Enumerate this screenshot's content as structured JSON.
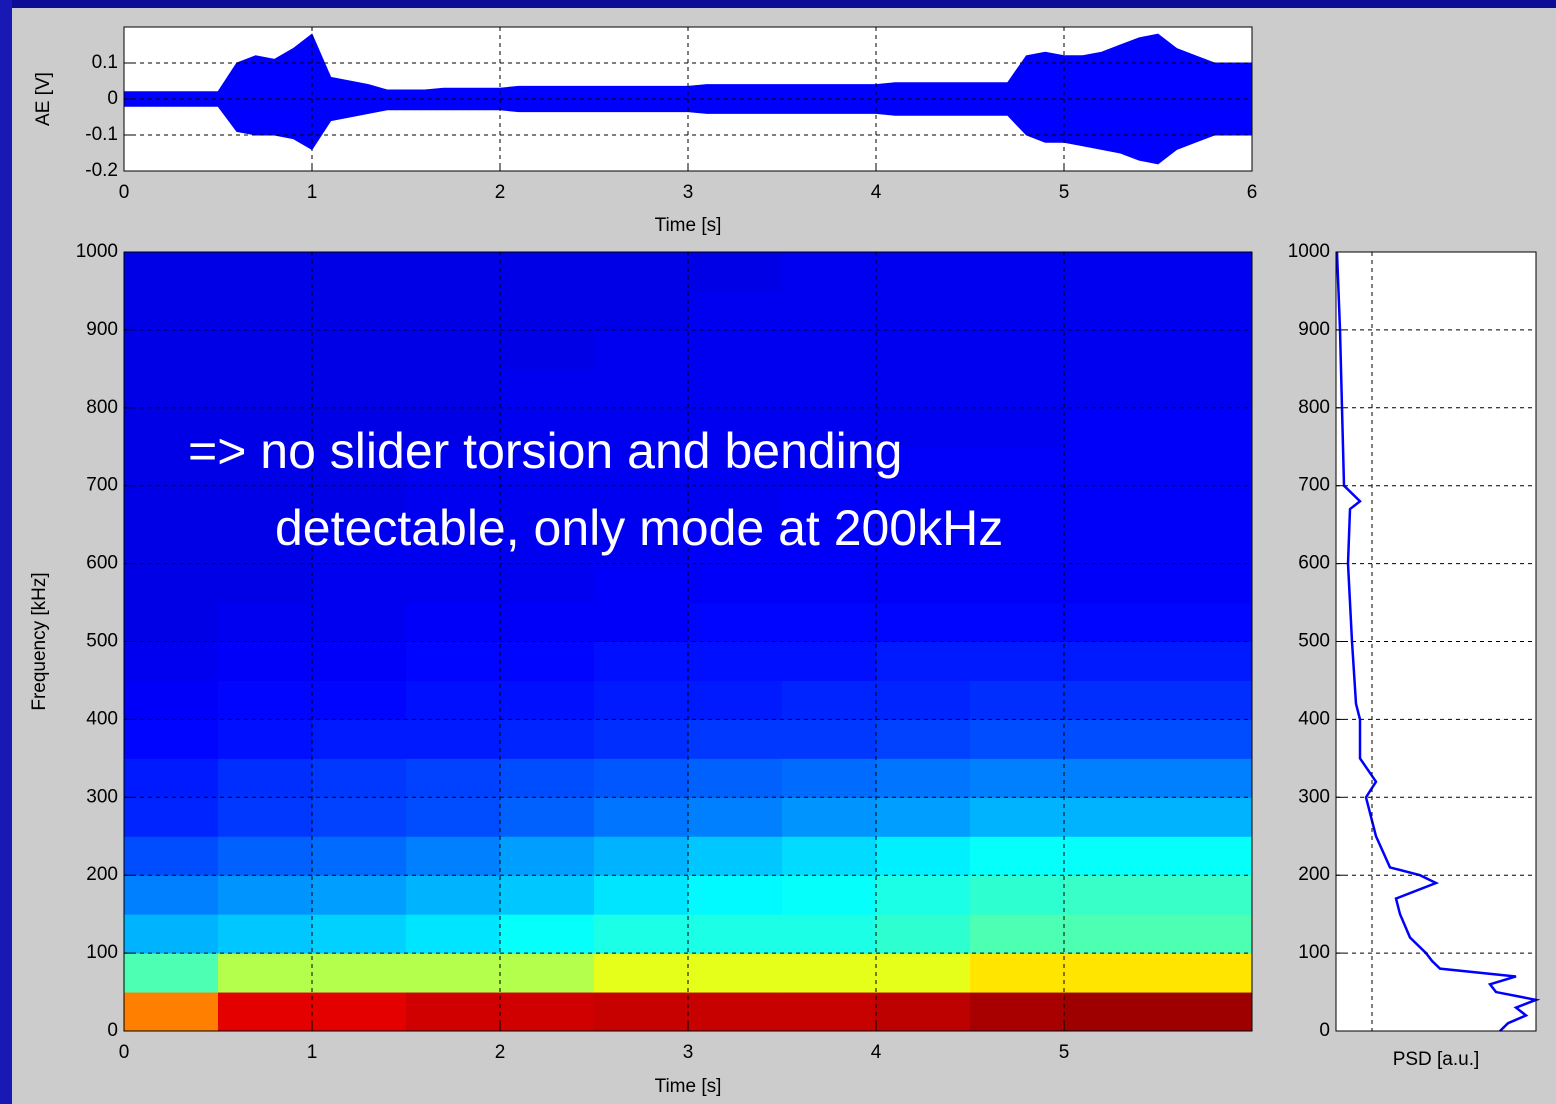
{
  "chart_data": [
    {
      "type": "band",
      "xlabel": "Time [s]",
      "ylabel": "AE [V]",
      "x": [
        0,
        0.1,
        0.2,
        0.3,
        0.4,
        0.5,
        0.6,
        0.7,
        0.8,
        0.9,
        1,
        1.1,
        1.2,
        1.3,
        1.4,
        1.5,
        1.6,
        1.7,
        1.8,
        1.9,
        2,
        2.1,
        2.2,
        2.3,
        2.4,
        2.5,
        2.6,
        2.7,
        2.8,
        2.9,
        3,
        3.1,
        3.2,
        3.3,
        3.4,
        3.5,
        3.6,
        3.7,
        3.8,
        3.9,
        4,
        4.1,
        4.2,
        4.3,
        4.4,
        4.5,
        4.6,
        4.7,
        4.8,
        4.9,
        5,
        5.1,
        5.2,
        5.3,
        5.4,
        5.5,
        5.6,
        5.7,
        5.8,
        5.9,
        6
      ],
      "series": [
        {
          "color": "#0000ff",
          "values": [
            0.02,
            0.02,
            0.02,
            0.02,
            0.02,
            0.02,
            0.1,
            0.12,
            0.11,
            0.14,
            0.18,
            0.06,
            0.05,
            0.04,
            0.025,
            0.025,
            0.025,
            0.03,
            0.03,
            0.03,
            0.03,
            0.035,
            0.035,
            0.035,
            0.035,
            0.035,
            0.035,
            0.035,
            0.035,
            0.035,
            0.035,
            0.04,
            0.04,
            0.04,
            0.04,
            0.04,
            0.04,
            0.04,
            0.04,
            0.04,
            0.04,
            0.045,
            0.045,
            0.045,
            0.045,
            0.045,
            0.045,
            0.045,
            0.12,
            0.13,
            0.12,
            0.12,
            0.13,
            0.15,
            0.17,
            0.18,
            0.14,
            0.12,
            0.1,
            0.1,
            0.1
          ]
        },
        {
          "color": "#0000ff",
          "values": [
            -0.02,
            -0.02,
            -0.02,
            -0.02,
            -0.02,
            -0.02,
            -0.09,
            -0.1,
            -0.1,
            -0.11,
            -0.14,
            -0.06,
            -0.05,
            -0.04,
            -0.03,
            -0.03,
            -0.03,
            -0.03,
            -0.03,
            -0.03,
            -0.03,
            -0.035,
            -0.035,
            -0.035,
            -0.035,
            -0.035,
            -0.035,
            -0.035,
            -0.035,
            -0.035,
            -0.035,
            -0.04,
            -0.04,
            -0.04,
            -0.04,
            -0.04,
            -0.04,
            -0.04,
            -0.04,
            -0.04,
            -0.04,
            -0.045,
            -0.045,
            -0.045,
            -0.045,
            -0.045,
            -0.045,
            -0.045,
            -0.1,
            -0.12,
            -0.12,
            -0.13,
            -0.14,
            -0.15,
            -0.17,
            -0.18,
            -0.14,
            -0.12,
            -0.1,
            -0.1,
            -0.1
          ]
        }
      ],
      "xlim": [
        0,
        6
      ],
      "ylim": [
        -0.2,
        0.2
      ],
      "xticks": [
        0,
        1,
        2,
        3,
        4,
        5,
        6
      ],
      "yticks": [
        -0.2,
        -0.1,
        0,
        0.1
      ],
      "grid": true
    },
    {
      "type": "heatmap",
      "xlabel": "Time [s]",
      "ylabel": "Frequency [kHz]",
      "annotation": [
        "=> no slider torsion and bending",
        "detectable, only mode at 200kHz"
      ],
      "xbins": [
        0,
        0.5,
        1,
        1.5,
        2,
        2.5,
        3,
        3.5,
        4,
        4.5,
        5,
        5.5,
        6
      ],
      "ybins": [
        0,
        50,
        100,
        150,
        200,
        250,
        300,
        350,
        400,
        450,
        500,
        550,
        600,
        650,
        700,
        750,
        800,
        850,
        900,
        950,
        1000
      ],
      "colormap": "jet",
      "clim": [
        0,
        1
      ],
      "z": [
        [
          0.75,
          0.9,
          0.9,
          0.92,
          0.92,
          0.93,
          0.93,
          0.93,
          0.94,
          0.96,
          0.97,
          0.97
        ],
        [
          0.45,
          0.55,
          0.55,
          0.55,
          0.55,
          0.6,
          0.6,
          0.6,
          0.6,
          0.65,
          0.65,
          0.65
        ],
        [
          0.3,
          0.32,
          0.33,
          0.35,
          0.38,
          0.4,
          0.4,
          0.4,
          0.42,
          0.45,
          0.45,
          0.45
        ],
        [
          0.25,
          0.27,
          0.28,
          0.3,
          0.32,
          0.35,
          0.37,
          0.38,
          0.4,
          0.42,
          0.43,
          0.43
        ],
        [
          0.2,
          0.22,
          0.23,
          0.25,
          0.28,
          0.3,
          0.32,
          0.34,
          0.36,
          0.38,
          0.38,
          0.38
        ],
        [
          0.16,
          0.18,
          0.19,
          0.2,
          0.22,
          0.24,
          0.25,
          0.27,
          0.28,
          0.3,
          0.3,
          0.3
        ],
        [
          0.15,
          0.17,
          0.18,
          0.19,
          0.2,
          0.21,
          0.22,
          0.23,
          0.24,
          0.25,
          0.25,
          0.25
        ],
        [
          0.13,
          0.14,
          0.15,
          0.15,
          0.16,
          0.17,
          0.18,
          0.18,
          0.19,
          0.2,
          0.2,
          0.2
        ],
        [
          0.12,
          0.13,
          0.13,
          0.14,
          0.14,
          0.15,
          0.15,
          0.16,
          0.16,
          0.17,
          0.17,
          0.17
        ],
        [
          0.11,
          0.12,
          0.12,
          0.13,
          0.13,
          0.14,
          0.14,
          0.14,
          0.15,
          0.15,
          0.15,
          0.15
        ],
        [
          0.1,
          0.11,
          0.11,
          0.12,
          0.12,
          0.12,
          0.13,
          0.13,
          0.13,
          0.13,
          0.13,
          0.13
        ],
        [
          0.1,
          0.1,
          0.11,
          0.11,
          0.11,
          0.12,
          0.12,
          0.12,
          0.12,
          0.12,
          0.12,
          0.12
        ],
        [
          0.1,
          0.1,
          0.11,
          0.11,
          0.11,
          0.11,
          0.12,
          0.12,
          0.12,
          0.12,
          0.12,
          0.12
        ],
        [
          0.1,
          0.1,
          0.1,
          0.11,
          0.11,
          0.11,
          0.11,
          0.12,
          0.12,
          0.12,
          0.12,
          0.12
        ],
        [
          0.1,
          0.1,
          0.1,
          0.11,
          0.11,
          0.11,
          0.11,
          0.11,
          0.12,
          0.12,
          0.12,
          0.12
        ],
        [
          0.1,
          0.1,
          0.1,
          0.1,
          0.11,
          0.11,
          0.11,
          0.11,
          0.11,
          0.11,
          0.12,
          0.12
        ],
        [
          0.1,
          0.1,
          0.1,
          0.1,
          0.11,
          0.11,
          0.11,
          0.11,
          0.11,
          0.11,
          0.11,
          0.11
        ],
        [
          0.1,
          0.1,
          0.1,
          0.1,
          0.1,
          0.11,
          0.11,
          0.11,
          0.11,
          0.11,
          0.11,
          0.11
        ],
        [
          0.1,
          0.1,
          0.1,
          0.1,
          0.1,
          0.1,
          0.11,
          0.11,
          0.11,
          0.11,
          0.11,
          0.11
        ],
        [
          0.1,
          0.1,
          0.1,
          0.1,
          0.1,
          0.1,
          0.1,
          0.11,
          0.11,
          0.11,
          0.11,
          0.11
        ]
      ],
      "xlim": [
        0,
        6
      ],
      "ylim": [
        0,
        1000
      ],
      "xticks": [
        0,
        1,
        2,
        3,
        4,
        5
      ],
      "yticks": [
        0,
        100,
        200,
        300,
        400,
        500,
        600,
        700,
        800,
        900,
        1000
      ],
      "grid": true
    },
    {
      "type": "profile",
      "xlabel": "PSD [a.u.]",
      "color": "#0000ff",
      "y": [
        0,
        10,
        20,
        30,
        40,
        50,
        60,
        70,
        80,
        90,
        100,
        120,
        150,
        170,
        190,
        200,
        210,
        250,
        300,
        320,
        350,
        400,
        420,
        500,
        600,
        670,
        680,
        700,
        800,
        900,
        1000
      ],
      "values": [
        0.82,
        0.86,
        0.95,
        0.9,
        1.0,
        0.8,
        0.77,
        0.9,
        0.52,
        0.48,
        0.45,
        0.37,
        0.32,
        0.3,
        0.5,
        0.42,
        0.27,
        0.2,
        0.15,
        0.2,
        0.12,
        0.12,
        0.1,
        0.08,
        0.06,
        0.07,
        0.12,
        0.04,
        0.03,
        0.02,
        0.005
      ],
      "xlim": [
        0,
        1
      ],
      "ylim": [
        0,
        1000
      ],
      "yticks": [
        0,
        100,
        200,
        300,
        400,
        500,
        600,
        700,
        800,
        900,
        1000
      ],
      "grid": true
    }
  ]
}
